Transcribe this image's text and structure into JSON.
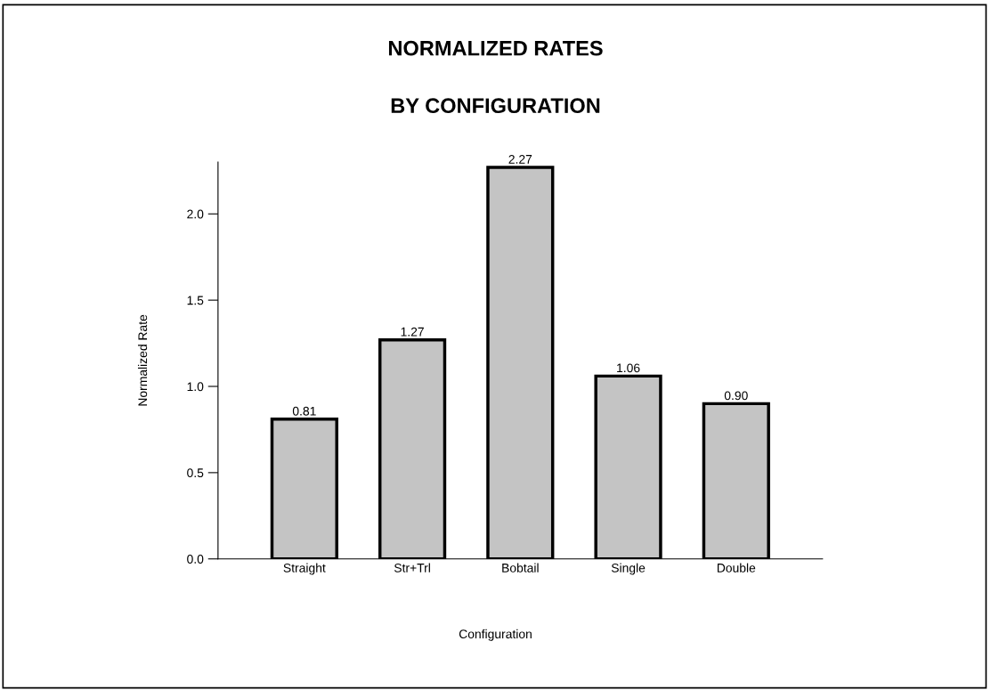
{
  "chart_data": {
    "type": "bar",
    "title": "NORMALIZED RATES\n\nBY CONFIGURATION",
    "xlabel": "Configuration",
    "ylabel": "Normalized Rate",
    "categories": [
      "Straight",
      "Str+Trl",
      "Bobtail",
      "Single",
      "Double"
    ],
    "values": [
      0.81,
      1.27,
      2.27,
      1.06,
      0.9
    ],
    "value_labels": [
      "0.81",
      "1.27",
      "2.27",
      "1.06",
      "0.90"
    ],
    "color": "#c4c4c4",
    "ylim": [
      0,
      2.3
    ],
    "yticks": [
      {
        "value": 0,
        "label": "0.0"
      },
      {
        "value": 0.5,
        "label": "0.5"
      },
      {
        "value": 1,
        "label": "1.0"
      },
      {
        "value": 1.5,
        "label": "1.5"
      },
      {
        "value": 2,
        "label": "2.0"
      }
    ],
    "grid": false,
    "legend": false
  }
}
